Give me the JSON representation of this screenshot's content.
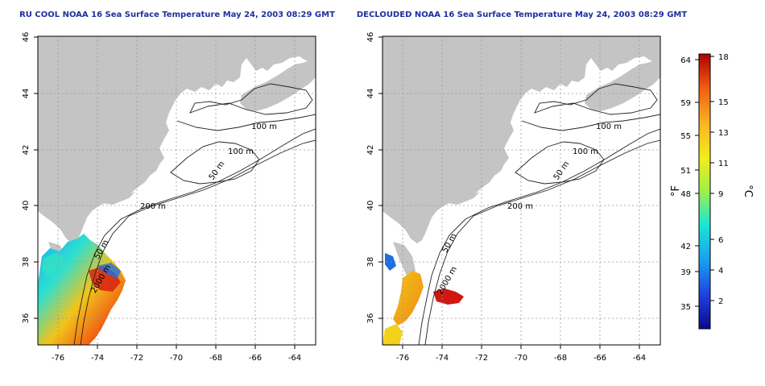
{
  "left_map": {
    "title": "RU COOL NOAA 16 Sea Surface Temperature May 24, 2003 08:29 GMT",
    "contour_labels": [
      "100 m",
      "100 m",
      "50 m",
      "200 m",
      "50 m",
      "2000 m"
    ]
  },
  "right_map": {
    "title": "DECLOUDED NOAA 16 Sea Surface Temperature May 24, 2003 08:29 GMT",
    "contour_labels": [
      "100 m",
      "100 m",
      "50 m",
      "200 m",
      "50 m",
      "2000 m"
    ]
  },
  "axes": {
    "lon_ticks": [
      "-76",
      "-74",
      "-72",
      "-70",
      "-68",
      "-66",
      "-64"
    ],
    "lat_ticks": [
      "46",
      "44",
      "42",
      "40",
      "38",
      "36"
    ]
  },
  "colorbar": {
    "fahrenheit_label": "°F",
    "celsius_label": "°C",
    "fahrenheit_ticks": [
      "64",
      "59",
      "55",
      "51",
      "48",
      "42",
      "39",
      "35"
    ],
    "celsius_ticks": [
      "18",
      "15",
      "13",
      "11",
      "9",
      "6",
      "4",
      "2"
    ],
    "colors": [
      "#0a0a8c",
      "#1f3fe0",
      "#19a0ef",
      "#19e6d6",
      "#9ef04a",
      "#f2ee1a",
      "#f7b421",
      "#f05a12",
      "#b00000"
    ]
  },
  "land_color": "#c4c4c4"
}
